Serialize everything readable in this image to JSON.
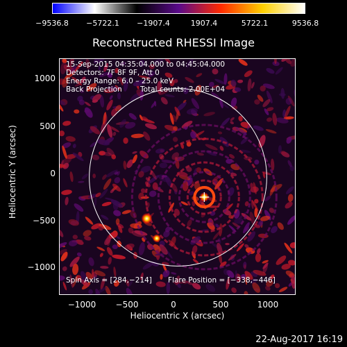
{
  "colorbar": {
    "ticks": [
      "−9536.8",
      "−5722.1",
      "−1907.4",
      "1907.4",
      "5722.1",
      "9536.8"
    ],
    "colors": [
      "#0000ff",
      "#ffffff",
      "#000000",
      "#5a0a8a",
      "#ff2a00",
      "#ffd000",
      "#ffffff"
    ]
  },
  "title": "Reconstructed RHESSI Image",
  "info": {
    "time_range": "15-Sep-2015 04:35:04.000 to 04:45:04.000",
    "detectors": "Detectors: 7F 8F 9F, Att 0",
    "energy": "Energy Range: 6.0 – 25.0 keV",
    "method": "Back Projection",
    "counts": "Total counts: 2.00E+04",
    "spin_axis": "Spin Axis = [284,−214]",
    "flare_position": "Flare Position = [−338,−446]"
  },
  "axes": {
    "xlabel": "Heliocentric X (arcsec)",
    "ylabel": "Heliocentric Y (arcsec)",
    "xticks": [
      "−1000",
      "−500",
      "0",
      "500",
      "1000"
    ],
    "yticks": [
      "1000",
      "500",
      "0",
      "−500",
      "−1000"
    ]
  },
  "timestamp": "22-Aug-2017 16:19",
  "chart_data": {
    "type": "heatmap",
    "title": "Reconstructed RHESSI Image",
    "xlabel": "Heliocentric X (arcsec)",
    "ylabel": "Heliocentric Y (arcsec)",
    "xlim": [
      -1280,
      1280
    ],
    "ylim": [
      -1280,
      1280
    ],
    "color_range": [
      -9536.8,
      9536.8
    ],
    "solar_disk_radius": 960,
    "spin_axis": [
      284,
      -214
    ],
    "sources": [
      {
        "x": -338,
        "y": -446,
        "label": "bright source"
      },
      {
        "x": -230,
        "y": -660,
        "label": "secondary source"
      },
      {
        "x": 284,
        "y": -214,
        "label": "ring pattern center"
      }
    ]
  }
}
